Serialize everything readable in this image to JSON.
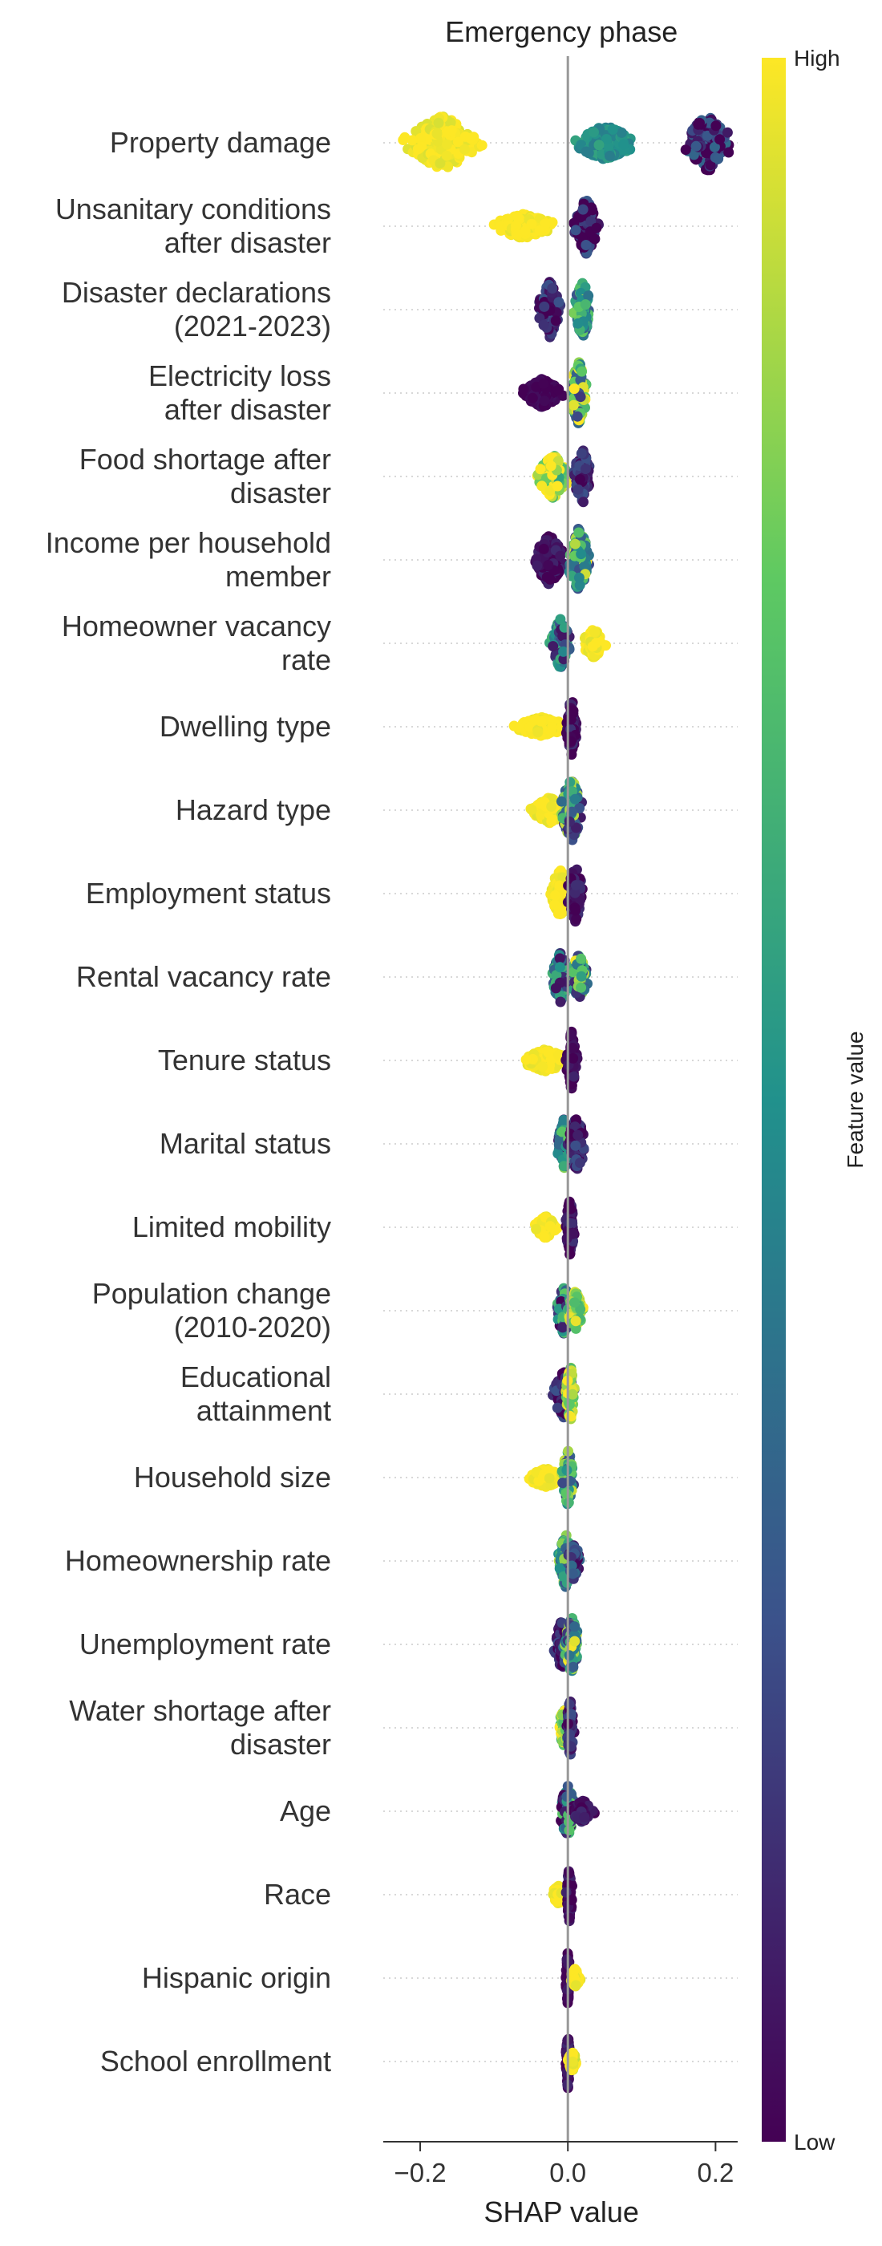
{
  "chart_data": {
    "type": "scatter",
    "subtype": "shap-beeswarm",
    "title": "Emergency phase",
    "xlabel": "SHAP value",
    "xlim": [
      -0.25,
      0.23
    ],
    "xticks": [
      {
        "value": -0.2,
        "label": "−0.2"
      },
      {
        "value": 0.0,
        "label": "0.0"
      },
      {
        "value": 0.2,
        "label": "0.2"
      }
    ],
    "colorbar": {
      "label": "Feature value",
      "high_label": "High",
      "low_label": "Low",
      "colormap": "viridis",
      "colors": [
        "#440154",
        "#3b528b",
        "#21918c",
        "#5ec962",
        "#fde725"
      ]
    },
    "grid": "dotted horizontal per feature",
    "features": [
      {
        "lines": [
          "Property damage"
        ],
        "clusters": [
          {
            "center": -0.17,
            "spread": 0.05,
            "height": 0.85,
            "value": 1.0,
            "jitter": 0.06
          },
          {
            "center": 0.05,
            "spread": 0.04,
            "height": 0.55,
            "value": 0.5,
            "jitter": 0.08
          },
          {
            "center": 0.19,
            "spread": 0.03,
            "height": 0.9,
            "value": 0.12,
            "jitter": 0.25
          }
        ]
      },
      {
        "lines": [
          "Unsanitary conditions",
          "after disaster"
        ],
        "clusters": [
          {
            "center": -0.06,
            "spread": 0.04,
            "height": 0.4,
            "value": 1.0,
            "jitter": 0.04
          },
          {
            "center": 0.025,
            "spread": 0.015,
            "height": 0.9,
            "value": 0.08,
            "jitter": 0.2
          }
        ]
      },
      {
        "lines": [
          "Disaster declarations",
          "(2021-2023)"
        ],
        "clusters": [
          {
            "center": -0.025,
            "spread": 0.015,
            "height": 0.9,
            "value": 0.12,
            "jitter": 0.15
          },
          {
            "center": 0.02,
            "spread": 0.012,
            "height": 0.9,
            "value": 0.55,
            "jitter": 0.3
          }
        ]
      },
      {
        "lines": [
          "Electricity loss",
          "after disaster"
        ],
        "clusters": [
          {
            "center": -0.035,
            "spread": 0.025,
            "height": 0.45,
            "value": 0.0,
            "jitter": 0.05
          },
          {
            "center": 0.015,
            "spread": 0.012,
            "height": 1.0,
            "value": 0.6,
            "jitter": 0.45
          }
        ]
      },
      {
        "lines": [
          "Food shortage after",
          "disaster"
        ],
        "clusters": [
          {
            "center": -0.02,
            "spread": 0.02,
            "height": 0.7,
            "value": 0.85,
            "jitter": 0.3
          },
          {
            "center": 0.02,
            "spread": 0.012,
            "height": 0.85,
            "value": 0.1,
            "jitter": 0.15
          }
        ]
      },
      {
        "lines": [
          "Income per household",
          "member"
        ],
        "clusters": [
          {
            "center": -0.025,
            "spread": 0.02,
            "height": 0.8,
            "value": 0.05,
            "jitter": 0.08
          },
          {
            "center": 0.015,
            "spread": 0.015,
            "height": 1.0,
            "value": 0.6,
            "jitter": 0.4
          }
        ]
      },
      {
        "lines": [
          "Homeowner vacancy",
          "rate"
        ],
        "clusters": [
          {
            "center": -0.01,
            "spread": 0.012,
            "height": 0.8,
            "value": 0.35,
            "jitter": 0.3
          },
          {
            "center": 0.035,
            "spread": 0.015,
            "height": 0.45,
            "value": 1.0,
            "jitter": 0.05
          }
        ]
      },
      {
        "lines": [
          "Dwelling type"
        ],
        "clusters": [
          {
            "center": -0.035,
            "spread": 0.035,
            "height": 0.3,
            "value": 1.0,
            "jitter": 0.04
          },
          {
            "center": 0.005,
            "spread": 0.008,
            "height": 0.9,
            "value": 0.05,
            "jitter": 0.1
          }
        ]
      },
      {
        "lines": [
          "Hazard type"
        ],
        "clusters": [
          {
            "center": -0.025,
            "spread": 0.025,
            "height": 0.4,
            "value": 1.0,
            "jitter": 0.05
          },
          {
            "center": 0.005,
            "spread": 0.015,
            "height": 1.0,
            "value": 0.5,
            "jitter": 0.45
          }
        ]
      },
      {
        "lines": [
          "Employment status"
        ],
        "clusters": [
          {
            "center": -0.01,
            "spread": 0.014,
            "height": 0.8,
            "value": 1.0,
            "jitter": 0.04
          },
          {
            "center": 0.01,
            "spread": 0.01,
            "height": 0.9,
            "value": 0.05,
            "jitter": 0.1
          }
        ]
      },
      {
        "lines": [
          "Rental vacancy rate"
        ],
        "clusters": [
          {
            "center": -0.01,
            "spread": 0.012,
            "height": 0.8,
            "value": 0.35,
            "jitter": 0.3
          },
          {
            "center": 0.015,
            "spread": 0.012,
            "height": 0.7,
            "value": 0.55,
            "jitter": 0.45
          }
        ]
      },
      {
        "lines": [
          "Tenure status"
        ],
        "clusters": [
          {
            "center": -0.03,
            "spread": 0.03,
            "height": 0.35,
            "value": 1.0,
            "jitter": 0.04
          },
          {
            "center": 0.005,
            "spread": 0.007,
            "height": 0.9,
            "value": 0.03,
            "jitter": 0.08
          }
        ]
      },
      {
        "lines": [
          "Marital status"
        ],
        "clusters": [
          {
            "center": -0.005,
            "spread": 0.01,
            "height": 0.8,
            "value": 0.4,
            "jitter": 0.45
          },
          {
            "center": 0.012,
            "spread": 0.012,
            "height": 0.85,
            "value": 0.1,
            "jitter": 0.15
          }
        ]
      },
      {
        "lines": [
          "Limited mobility"
        ],
        "clusters": [
          {
            "center": -0.03,
            "spread": 0.015,
            "height": 0.35,
            "value": 1.0,
            "jitter": 0.04
          },
          {
            "center": 0.003,
            "spread": 0.006,
            "height": 0.9,
            "value": 0.05,
            "jitter": 0.1
          }
        ]
      },
      {
        "lines": [
          "Population change",
          "(2010-2020)"
        ],
        "clusters": [
          {
            "center": -0.005,
            "spread": 0.01,
            "height": 0.8,
            "value": 0.35,
            "jitter": 0.4
          },
          {
            "center": 0.01,
            "spread": 0.01,
            "height": 0.65,
            "value": 0.8,
            "jitter": 0.2
          }
        ]
      },
      {
        "lines": [
          "Educational",
          "attainment"
        ],
        "clusters": [
          {
            "center": -0.005,
            "spread": 0.015,
            "height": 0.75,
            "value": 0.1,
            "jitter": 0.15
          },
          {
            "center": 0.003,
            "spread": 0.006,
            "height": 0.95,
            "value": 0.85,
            "jitter": 0.2
          }
        ]
      },
      {
        "lines": [
          "Household size"
        ],
        "clusters": [
          {
            "center": -0.03,
            "spread": 0.025,
            "height": 0.3,
            "value": 1.0,
            "jitter": 0.04
          },
          {
            "center": 0.0,
            "spread": 0.008,
            "height": 0.9,
            "value": 0.55,
            "jitter": 0.4
          }
        ]
      },
      {
        "lines": [
          "Homeownership rate"
        ],
        "clusters": [
          {
            "center": -0.003,
            "spread": 0.01,
            "height": 0.85,
            "value": 0.6,
            "jitter": 0.35
          },
          {
            "center": 0.008,
            "spread": 0.008,
            "height": 0.6,
            "value": 0.15,
            "jitter": 0.2
          }
        ]
      },
      {
        "lines": [
          "Unemployment rate"
        ],
        "clusters": [
          {
            "center": -0.008,
            "spread": 0.01,
            "height": 0.8,
            "value": 0.1,
            "jitter": 0.15
          },
          {
            "center": 0.005,
            "spread": 0.01,
            "height": 0.9,
            "value": 0.6,
            "jitter": 0.45
          }
        ]
      },
      {
        "lines": [
          "Water shortage after",
          "disaster"
        ],
        "clusters": [
          {
            "center": -0.005,
            "spread": 0.008,
            "height": 0.6,
            "value": 0.85,
            "jitter": 0.2
          },
          {
            "center": 0.003,
            "spread": 0.005,
            "height": 0.9,
            "value": 0.1,
            "jitter": 0.15
          }
        ]
      },
      {
        "lines": [
          "Age"
        ],
        "clusters": [
          {
            "center": 0.0,
            "spread": 0.012,
            "height": 0.8,
            "value": 0.4,
            "jitter": 0.45
          },
          {
            "center": 0.02,
            "spread": 0.015,
            "height": 0.35,
            "value": 0.05,
            "jitter": 0.08
          }
        ]
      },
      {
        "lines": [
          "Race"
        ],
        "clusters": [
          {
            "center": -0.012,
            "spread": 0.01,
            "height": 0.3,
            "value": 1.0,
            "jitter": 0.04
          },
          {
            "center": 0.002,
            "spread": 0.004,
            "height": 0.85,
            "value": 0.03,
            "jitter": 0.08
          }
        ]
      },
      {
        "lines": [
          "Hispanic origin"
        ],
        "clusters": [
          {
            "center": 0.0,
            "spread": 0.003,
            "height": 0.85,
            "value": 0.03,
            "jitter": 0.06
          },
          {
            "center": 0.01,
            "spread": 0.006,
            "height": 0.3,
            "value": 1.0,
            "jitter": 0.04
          }
        ]
      },
      {
        "lines": [
          "School enrollment"
        ],
        "clusters": [
          {
            "center": 0.0,
            "spread": 0.003,
            "height": 0.85,
            "value": 0.05,
            "jitter": 0.08
          },
          {
            "center": 0.006,
            "spread": 0.006,
            "height": 0.3,
            "value": 1.0,
            "jitter": 0.1
          }
        ]
      }
    ]
  }
}
